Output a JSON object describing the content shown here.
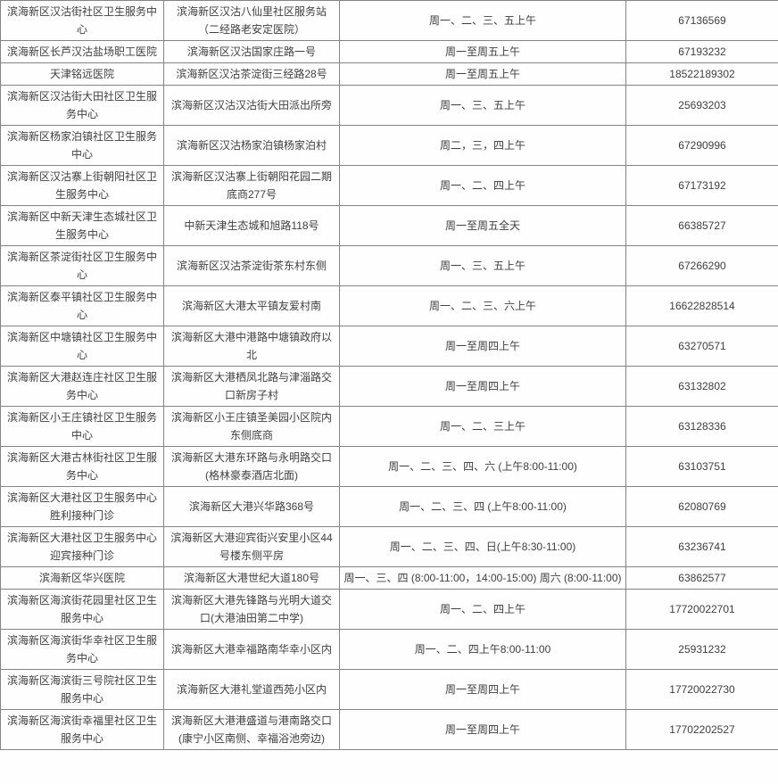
{
  "colors": {
    "border": "#848484",
    "text": "#3f3f3f",
    "background": "#fefefe"
  },
  "table": {
    "rows": [
      {
        "name": "滨海新区汉沽街社区卫生服务中心",
        "address": "滨海新区汉沽八仙里社区服务站（二经路老安定医院）",
        "schedule": "周一、二、三、五上午",
        "phone": "67136569"
      },
      {
        "name": "滨海新区长芦汉沽盐场职工医院",
        "address": "滨海新区汉沽国家庄路一号",
        "schedule": "周一至周五上午",
        "phone": "67193232"
      },
      {
        "name": "天津铭远医院",
        "address": "滨海新区汉沽茶淀街三经路28号",
        "schedule": "周一至周五上午",
        "phone": "18522189302"
      },
      {
        "name": "滨海新区汉沽街大田社区卫生服务中心",
        "address": "滨海新区汉沽汉沽街大田派出所旁",
        "schedule": "周一、三、五上午",
        "phone": "25693203"
      },
      {
        "name": "滨海新区杨家泊镇社区卫生服务中心",
        "address": "滨海新区汉沽杨家泊镇杨家泊村",
        "schedule": "周二，三，四上午",
        "phone": "67290996"
      },
      {
        "name": "滨海新区汉沽寨上街朝阳社区卫生服务中心",
        "address": "滨海新区汉沽寨上街朝阳花园二期底商277号",
        "schedule": "周一、二、四上午",
        "phone": "67173192"
      },
      {
        "name": "滨海新区中新天津生态城社区卫生服务中心",
        "address": "中新天津生态城和旭路118号",
        "schedule": "周一至周五全天",
        "phone": "66385727"
      },
      {
        "name": "滨海新区茶淀街社区卫生服务中心",
        "address": "滨海新区汉沽茶淀街茶东村东侧",
        "schedule": "周一、三、五上午",
        "phone": "67266290"
      },
      {
        "name": "滨海新区泰平镇社区卫生服务中心",
        "address": "滨海新区大港太平镇友爱村南",
        "schedule": "周一、二、三、六上午",
        "phone": "16622828514"
      },
      {
        "name": "滨海新区中塘镇社区卫生服务中心",
        "address": "滨海新区大港中港路中塘镇政府以北",
        "schedule": "周一至周四上午",
        "phone": "63270571"
      },
      {
        "name": "滨海新区大港赵连庄社区卫生服务中心",
        "address": "滨海新区大港栖凤北路与津淄路交口新房子村",
        "schedule": "周一至周四上午",
        "phone": "63132802"
      },
      {
        "name": "滨海新区小王庄镇社区卫生服务中心",
        "address": "滨海新区小王庄镇圣美园小区院内东侧底商",
        "schedule": "周一、二、三上午",
        "phone": "63128336"
      },
      {
        "name": "滨海新区大港古林街社区卫生服务中心",
        "address": "滨海新区大港东环路与永明路交口(格林豪泰酒店北面)",
        "schedule": "周一、二、三、四、六 (上午8:00-11:00)",
        "phone": "63103751"
      },
      {
        "name": "滨海新区大港社区卫生服务中心胜利接种门诊",
        "address": "滨海新区大港兴华路368号",
        "schedule": "周一、二、三、四 (上午8:00-11:00)",
        "phone": "62080769"
      },
      {
        "name": "滨海新区大港社区卫生服务中心迎宾接种门诊",
        "address": "滨海新区大港迎宾街兴安里小区44号楼东侧平房",
        "schedule": "周一、二、三、四、日(上午8:30-11:00)",
        "phone": "63236741"
      },
      {
        "name": "滨海新区华兴医院",
        "address": "滨海新区大港世纪大道180号",
        "schedule": "周一、三、四 (8:00-11:00，14:00-15:00) 周六 (8:00-11:00)",
        "phone": "63862577"
      },
      {
        "name": "滨海新区海滨街花园里社区卫生服务中心",
        "address": "滨海新区大港先锋路与光明大道交口(大港油田第二中学)",
        "schedule": "周一、二、四上午",
        "phone": "17720022701"
      },
      {
        "name": "滨海新区海滨街华幸社区卫生服务中心",
        "address": "滨海新区大港幸福路南华幸小区内",
        "schedule": "周一、二、四上午8:00-11:00",
        "phone": "25931232"
      },
      {
        "name": "滨海新区海滨街三号院社区卫生服务中心",
        "address": "滨海新区大港礼堂道西苑小区内",
        "schedule": "周一至周四上午",
        "phone": "17720022730"
      },
      {
        "name": "滨海新区海滨街幸福里社区卫生服务中心",
        "address": "滨海新区大港港盛道与港南路交口(康宁小区南侧、幸福浴池旁边)",
        "schedule": "周一至周四上午",
        "phone": "17702202527"
      }
    ]
  }
}
